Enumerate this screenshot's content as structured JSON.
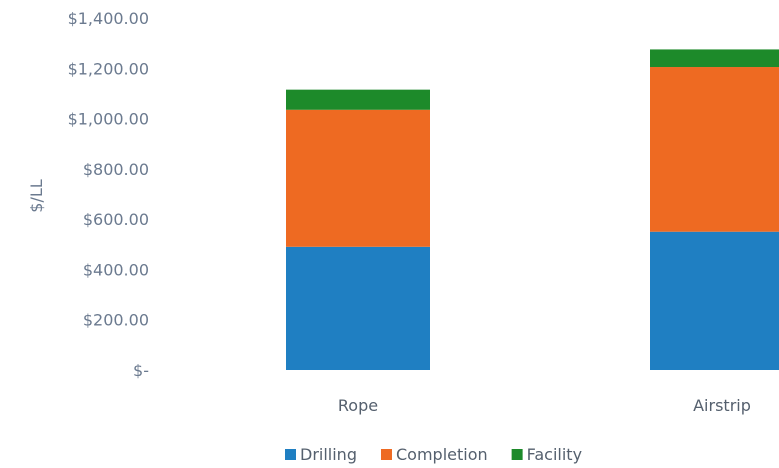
{
  "chart_data": {
    "type": "bar",
    "stacked": true,
    "categories": [
      "Rope",
      "Airstrip"
    ],
    "series": [
      {
        "name": "Drilling",
        "values": [
          490,
          550
        ],
        "color": "#1f7fc2"
      },
      {
        "name": "Completion",
        "values": [
          545,
          655
        ],
        "color": "#ee6a22"
      },
      {
        "name": "Facility",
        "values": [
          80,
          70
        ],
        "color": "#1d8a2a"
      }
    ],
    "ylabel": "$/LL",
    "ylim": [
      0,
      1400
    ],
    "yticks": [
      {
        "value": 0,
        "label": "$-"
      },
      {
        "value": 200,
        "label": "$200.00"
      },
      {
        "value": 400,
        "label": "$400.00"
      },
      {
        "value": 600,
        "label": "$600.00"
      },
      {
        "value": 800,
        "label": "$800.00"
      },
      {
        "value": 1000,
        "label": "$1,000.00"
      },
      {
        "value": 1200,
        "label": "$1,200.00"
      },
      {
        "value": 1400,
        "label": "$1,400.00"
      }
    ],
    "grid": false,
    "legend_position": "bottom"
  }
}
